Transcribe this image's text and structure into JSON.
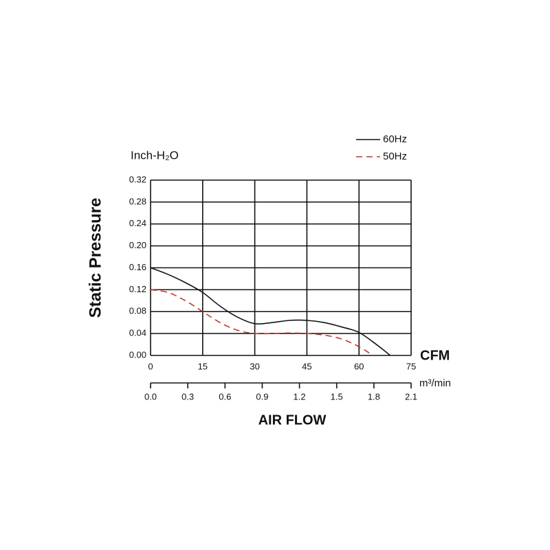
{
  "chart_data": {
    "type": "line",
    "y_label": "Static Pressure",
    "y_unit": "Inch-H₂O",
    "x_label": "AIR FLOW",
    "x_unit": "CFM",
    "x2_unit": "m³/min",
    "xlim": [
      0,
      75
    ],
    "xticks": [
      0,
      15,
      30,
      45,
      60,
      75
    ],
    "x2lim": [
      0,
      2.1
    ],
    "x2ticks": [
      {
        "value": 0,
        "label": "0.0"
      },
      0.3,
      0.6,
      0.9,
      1.2,
      1.5,
      1.8,
      2.1
    ],
    "ylim": [
      0,
      0.32
    ],
    "yticks": [
      {
        "value": 0,
        "label": "0.00"
      },
      0.04,
      0.08,
      0.12,
      0.16,
      {
        "value": 0.2,
        "label": "0.20"
      },
      0.24,
      0.28,
      0.32
    ],
    "grid": true,
    "legend": "top-right",
    "series": [
      {
        "name": "60Hz",
        "color": "#111111",
        "dash": false,
        "x": [
          0,
          5,
          10,
          15,
          20,
          25,
          30,
          35,
          40,
          45,
          50,
          55,
          60,
          65,
          69
        ],
        "values": [
          0.16,
          0.148,
          0.133,
          0.115,
          0.09,
          0.07,
          0.058,
          0.06,
          0.064,
          0.064,
          0.06,
          0.052,
          0.042,
          0.02,
          0
        ]
      },
      {
        "name": "50Hz",
        "color": "#c0392b",
        "dash": true,
        "x": [
          0,
          5,
          10,
          15,
          20,
          25,
          30,
          35,
          40,
          45,
          50,
          55,
          60,
          64
        ],
        "values": [
          0.12,
          0.115,
          0.1,
          0.08,
          0.06,
          0.046,
          0.04,
          0.04,
          0.041,
          0.04,
          0.037,
          0.03,
          0.016,
          0
        ]
      }
    ]
  }
}
